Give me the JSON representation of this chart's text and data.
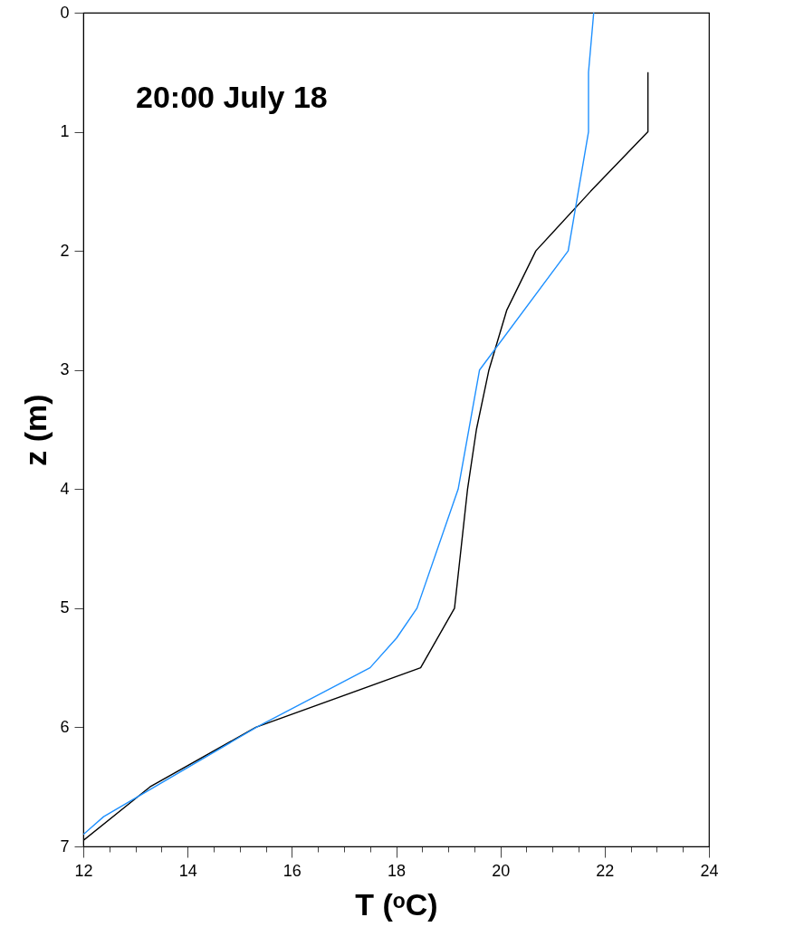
{
  "chart_data": {
    "type": "line",
    "xlabel": "T (ᵒC)",
    "ylabel": "z (m)",
    "annotations": [
      "20:00 July 18"
    ],
    "xlim": [
      12,
      24
    ],
    "ylim": [
      7,
      0
    ],
    "xticks": [
      12,
      {
        "value": 12.5,
        "label": null
      },
      {
        "value": 13,
        "label": null
      },
      {
        "value": 13.5,
        "label": null
      },
      14,
      {
        "value": 14.5,
        "label": null
      },
      {
        "value": 15,
        "label": null
      },
      {
        "value": 15.5,
        "label": null
      },
      16,
      {
        "value": 16.5,
        "label": null
      },
      {
        "value": 17,
        "label": null
      },
      {
        "value": 17.5,
        "label": null
      },
      18,
      {
        "value": 18.5,
        "label": null
      },
      {
        "value": 19,
        "label": null
      },
      {
        "value": 19.5,
        "label": null
      },
      20,
      {
        "value": 20.5,
        "label": null
      },
      {
        "value": 21,
        "label": null
      },
      {
        "value": 21.5,
        "label": null
      },
      22,
      {
        "value": 22.5,
        "label": null
      },
      {
        "value": 23,
        "label": null
      },
      {
        "value": 23.5,
        "label": null
      },
      24
    ],
    "yticks": [
      0,
      1,
      2,
      3,
      4,
      5,
      6,
      7
    ],
    "grid": false,
    "marker": "none",
    "line_style": "solid",
    "series": [
      {
        "color": "#000000",
        "x": [
          22.83,
          22.83,
          21.73,
          20.68,
          20.12,
          19.78,
          19.54,
          19.37,
          19.12,
          18.47,
          15.31,
          13.28,
          12.0
        ],
        "values": [
          0.5,
          1.0,
          1.5,
          2.0,
          2.5,
          3.0,
          3.5,
          4.0,
          5.0,
          5.5,
          6.0,
          6.5,
          6.95
        ]
      },
      {
        "color": "#1e90ff",
        "x": [
          21.79,
          21.69,
          21.69,
          21.3,
          19.6,
          19.19,
          18.4,
          18.01,
          17.5,
          15.32,
          12.39,
          12.0
        ],
        "values": [
          0.0,
          0.5,
          1.0,
          2.0,
          3.0,
          4.0,
          5.0,
          5.25,
          5.5,
          6.0,
          6.75,
          6.9
        ]
      }
    ]
  }
}
